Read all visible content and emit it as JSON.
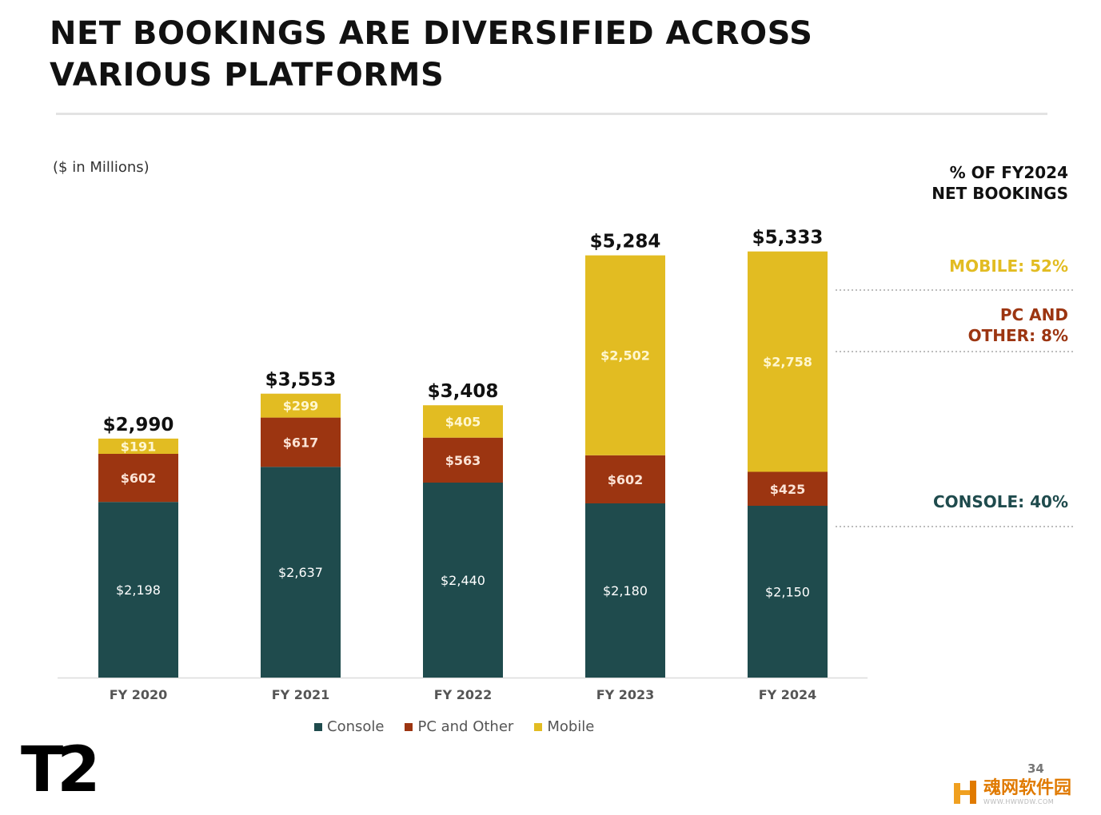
{
  "title_lines": [
    "NET BOOKINGS ARE DIVERSIFIED ACROSS",
    "VARIOUS PLATFORMS"
  ],
  "subtitle": "($ in Millions)",
  "chart_data": {
    "type": "bar",
    "stacked": true,
    "categories": [
      "FY 2020",
      "FY 2021",
      "FY 2022",
      "FY 2023",
      "FY 2024"
    ],
    "series": [
      {
        "name": "Console",
        "values": [
          2198,
          2637,
          2440,
          2180,
          2150
        ],
        "labels": [
          "$2,198",
          "$2,637",
          "$2,440",
          "$2,180",
          "$2,150"
        ],
        "color": "#1f4b4d"
      },
      {
        "name": "PC and Other",
        "values": [
          602,
          617,
          563,
          602,
          425
        ],
        "labels": [
          "$602",
          "$617",
          "$563",
          "$602",
          "$425"
        ],
        "color": "#9c3511"
      },
      {
        "name": "Mobile",
        "values": [
          191,
          299,
          405,
          2502,
          2758
        ],
        "labels": [
          "$191",
          "$299",
          "$405",
          "$2,502",
          "$2,758"
        ],
        "color": "#e2bc22"
      }
    ],
    "totals": [
      2990,
      3553,
      3408,
      5284,
      5333
    ],
    "total_labels": [
      "$2,990",
      "$3,553",
      "$3,408",
      "$5,284",
      "$5,333"
    ],
    "grid": false,
    "legend_position": "bottom"
  },
  "share_panel": {
    "heading_lines": [
      "% OF FY2024",
      "NET BOOKINGS"
    ],
    "items": [
      {
        "lines": [
          "MOBILE: 52%"
        ],
        "color": "#e2bc22"
      },
      {
        "lines": [
          "PC AND",
          "OTHER: 8%"
        ],
        "color": "#9c3511"
      },
      {
        "lines": [
          "CONSOLE: 40%"
        ],
        "color": "#1f4b4d"
      }
    ]
  },
  "logo": "T2",
  "page_number": "34",
  "watermark": {
    "text": "魂网软件园",
    "subtext": "WWW.HWWDW.COM",
    "color": "#e07a00"
  }
}
